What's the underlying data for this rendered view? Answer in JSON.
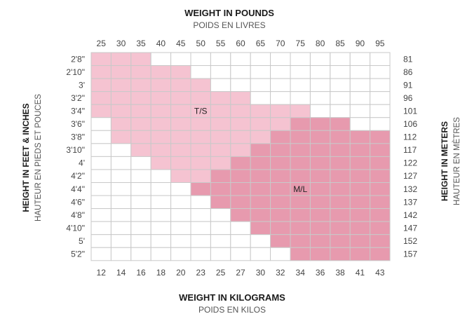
{
  "chart_data": {
    "type": "heatmap",
    "top_title": "WEIGHT IN POUNDS",
    "top_subtitle": "POIDS EN LIVRES",
    "bottom_title": "WEIGHT IN KILOGRAMS",
    "bottom_subtitle": "POIDS EN KILOS",
    "left_title": "HEIGHT IN FEET & INCHES",
    "left_subtitle": "HAUTEUR EN PIEDS ET POUCES",
    "right_title": "HEIGHT IN METERS",
    "right_subtitle": "HAUTEUR EN MÈTRES",
    "x_pounds": [
      "25",
      "30",
      "35",
      "40",
      "45",
      "50",
      "55",
      "60",
      "65",
      "70",
      "75",
      "80",
      "85",
      "90",
      "95"
    ],
    "x_kilograms": [
      "12",
      "14",
      "16",
      "18",
      "20",
      "23",
      "25",
      "27",
      "30",
      "32",
      "34",
      "36",
      "38",
      "41",
      "43"
    ],
    "y_feet_inches": [
      "2'8\"",
      "2'10\"",
      "3'",
      "3'2\"",
      "3'4\"",
      "3'6\"",
      "3'8\"",
      "3'10\"",
      "4'",
      "4'2\"",
      "4'4\"",
      "4'6\"",
      "4'8\"",
      "4'10\"",
      "5'",
      "5'2\""
    ],
    "y_meters": [
      "81",
      "86",
      "91",
      "96",
      "101",
      "106",
      "112",
      "117",
      "122",
      "127",
      "132",
      "137",
      "142",
      "147",
      "152",
      "157"
    ],
    "zones": [
      {
        "label": "T/S",
        "color": "#f5c3d1"
      },
      {
        "label": "M/L",
        "color": "#e79aae"
      }
    ],
    "grid_color": "#c9c9c9",
    "cells": [
      "TTT............",
      "TTTTT..........",
      "TTTTTT.........",
      "TTTTTTTT.......",
      "TTTTTTTTTTT....",
      ".TTTTTTTTTMMM..",
      ".TTTTTTTTMMMMMM",
      "..TTTTTTMMMMMMM",
      "...TTTTMMMMMMMM",
      "....TTMMMMMMMMM",
      ".....MMMMMMMMMM",
      "......MMMMMMMMM",
      ".......MMMMMMMM",
      "........MMMMMMM",
      ".........MMMMMM",
      "..........MMMMM"
    ],
    "zone_label_cells": {
      "T/S": {
        "row": 4,
        "col": 5
      },
      "M/L": {
        "row": 10,
        "col": 10
      }
    }
  }
}
